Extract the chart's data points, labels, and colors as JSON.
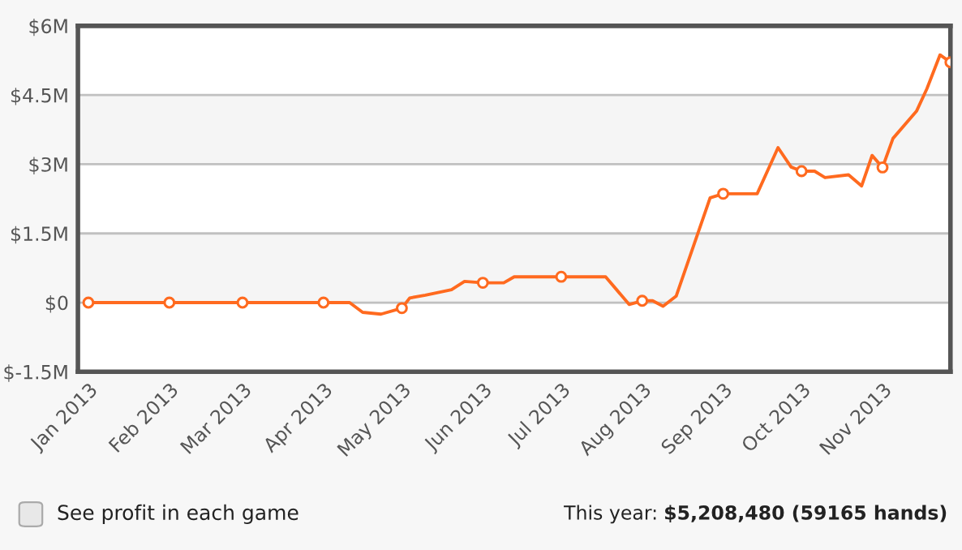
{
  "chart_data": {
    "type": "line",
    "series": [
      {
        "type": "line",
        "color": "#ff6a1f",
        "marker": "none",
        "x": [
          "2013-01-01",
          "2013-02-01",
          "2013-03-01",
          "2013-04-01",
          "2013-04-11",
          "2013-04-16",
          "2013-04-23",
          "2013-05-01",
          "2013-05-04",
          "2013-05-10",
          "2013-05-20",
          "2013-05-25",
          "2013-06-01",
          "2013-06-09",
          "2013-06-13",
          "2013-07-01",
          "2013-07-18",
          "2013-07-27",
          "2013-08-01",
          "2013-08-05",
          "2013-08-09",
          "2013-08-14",
          "2013-08-27",
          "2013-09-01",
          "2013-09-14",
          "2013-09-22",
          "2013-09-27",
          "2013-10-01",
          "2013-10-06",
          "2013-10-10",
          "2013-10-19",
          "2013-10-24",
          "2013-10-28",
          "2013-11-01",
          "2013-11-05",
          "2013-11-14",
          "2013-11-18",
          "2013-11-23",
          "2013-11-27"
        ],
        "values": [
          0,
          0,
          0,
          0,
          0,
          -0.21,
          -0.25,
          -0.12,
          0.1,
          0.16,
          0.28,
          0.46,
          0.43,
          0.43,
          0.56,
          0.56,
          0.56,
          -0.04,
          0.04,
          0.04,
          -0.08,
          0.14,
          2.27,
          2.36,
          2.36,
          3.36,
          2.94,
          2.85,
          2.85,
          2.71,
          2.77,
          2.53,
          3.19,
          2.93,
          3.56,
          4.15,
          4.64,
          5.37,
          5.21
        ]
      },
      {
        "type": "scatter",
        "color": "#ff6a1f",
        "marker": "circle",
        "x": [
          "2013-01-01",
          "2013-02-01",
          "2013-03-01",
          "2013-04-01",
          "2013-05-01",
          "2013-06-01",
          "2013-07-01",
          "2013-08-01",
          "2013-09-01",
          "2013-10-01",
          "2013-11-01",
          "2013-11-27"
        ],
        "values": [
          0,
          0,
          0,
          0,
          -0.12,
          0.43,
          0.56,
          0.04,
          2.36,
          2.85,
          2.93,
          5.21
        ]
      }
    ],
    "xlim": [
      "2012-12-28",
      "2013-11-27"
    ],
    "xticks": [
      {
        "value": "2013-01-01",
        "label": "Jan 2013"
      },
      {
        "value": "2013-02-01",
        "label": "Feb 2013"
      },
      {
        "value": "2013-03-01",
        "label": "Mar 2013"
      },
      {
        "value": "2013-04-01",
        "label": "Apr 2013"
      },
      {
        "value": "2013-05-01",
        "label": "May 2013"
      },
      {
        "value": "2013-06-01",
        "label": "Jun 2013"
      },
      {
        "value": "2013-07-01",
        "label": "Jul 2013"
      },
      {
        "value": "2013-08-01",
        "label": "Aug 2013"
      },
      {
        "value": "2013-09-01",
        "label": "Sep 2013"
      },
      {
        "value": "2013-10-01",
        "label": "Oct 2013"
      },
      {
        "value": "2013-11-01",
        "label": "Nov 2013"
      }
    ],
    "ylim": [
      -1.5,
      6
    ],
    "yticks": [
      {
        "value": -1.5,
        "label": "$-1.5M"
      },
      {
        "value": 0,
        "label": "$0"
      },
      {
        "value": 1.5,
        "label": "$1.5M"
      },
      {
        "value": 3,
        "label": "$3M"
      },
      {
        "value": 4.5,
        "label": "$4.5M"
      },
      {
        "value": 6,
        "label": "$6M"
      }
    ],
    "bands": [
      {
        "axis": "y",
        "from": 0,
        "to": 1.5,
        "color": "#f5f5f5"
      },
      {
        "axis": "y",
        "from": 3,
        "to": 4.5,
        "color": "#f5f5f5"
      }
    ],
    "grid": "y",
    "legend": false,
    "annotations": [
      "See profit in each game",
      "This year:",
      "$5,208,480 (59165 hands)"
    ]
  }
}
